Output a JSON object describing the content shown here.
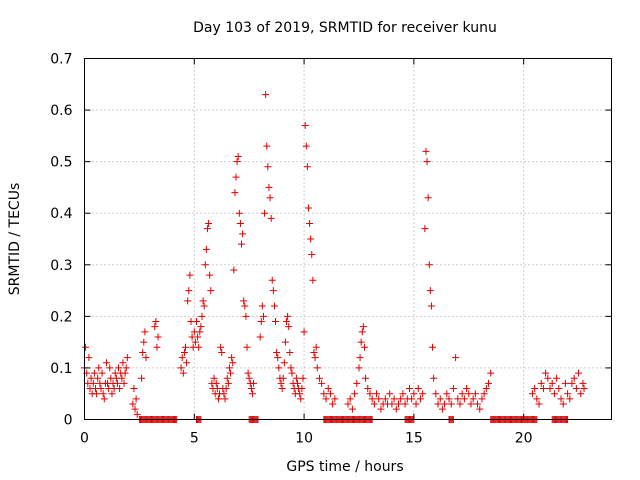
{
  "chart_data": {
    "type": "scatter",
    "title": "Day 103 of 2019, SRMTID for receiver kunu",
    "xlabel": "GPS time / hours",
    "ylabel": "SRMTID / TECUs",
    "xlim": [
      0,
      24
    ],
    "ylim": [
      0,
      0.7
    ],
    "xticks": [
      0,
      5,
      10,
      15,
      20
    ],
    "yticks": [
      0,
      0.1,
      0.2,
      0.3,
      0.4,
      0.5,
      0.6,
      0.7
    ],
    "xtick_labels": [
      "0",
      "5",
      "10",
      "15",
      "20"
    ],
    "ytick_labels": [
      "0",
      "0.1",
      "0.2",
      "0.3",
      "0.4",
      "0.5",
      "0.6",
      "0.7"
    ],
    "grid": true,
    "marker": "+",
    "color": "#e00000",
    "series": [
      {
        "name": "SRMTID",
        "points": [
          [
            0.0,
            0.1
          ],
          [
            0.05,
            0.14
          ],
          [
            0.1,
            0.09
          ],
          [
            0.15,
            0.07
          ],
          [
            0.2,
            0.12
          ],
          [
            0.25,
            0.06
          ],
          [
            0.3,
            0.08
          ],
          [
            0.35,
            0.05
          ],
          [
            0.4,
            0.07
          ],
          [
            0.45,
            0.09
          ],
          [
            0.5,
            0.06
          ],
          [
            0.55,
            0.05
          ],
          [
            0.6,
            0.08
          ],
          [
            0.65,
            0.1
          ],
          [
            0.7,
            0.07
          ],
          [
            0.75,
            0.06
          ],
          [
            0.8,
            0.09
          ],
          [
            0.85,
            0.05
          ],
          [
            0.9,
            0.04
          ],
          [
            0.95,
            0.07
          ],
          [
            1.0,
            0.11
          ],
          [
            1.05,
            0.07
          ],
          [
            1.1,
            0.06
          ],
          [
            1.15,
            0.1
          ],
          [
            1.2,
            0.08
          ],
          [
            1.25,
            0.05
          ],
          [
            1.3,
            0.07
          ],
          [
            1.35,
            0.06
          ],
          [
            1.4,
            0.09
          ],
          [
            1.45,
            0.08
          ],
          [
            1.5,
            0.07
          ],
          [
            1.55,
            0.1
          ],
          [
            1.6,
            0.06
          ],
          [
            1.65,
            0.09
          ],
          [
            1.7,
            0.08
          ],
          [
            1.75,
            0.11
          ],
          [
            1.8,
            0.07
          ],
          [
            1.85,
            0.09
          ],
          [
            1.9,
            0.1
          ],
          [
            1.95,
            0.12
          ],
          [
            2.2,
            0.03
          ],
          [
            2.25,
            0.06
          ],
          [
            2.3,
            0.02
          ],
          [
            2.35,
            0.04
          ],
          [
            2.4,
            0.01
          ],
          [
            2.6,
            0.08
          ],
          [
            2.65,
            0.13
          ],
          [
            2.7,
            0.15
          ],
          [
            2.75,
            0.17
          ],
          [
            2.8,
            0.12
          ],
          [
            3.2,
            0.18
          ],
          [
            3.25,
            0.19
          ],
          [
            3.3,
            0.14
          ],
          [
            3.35,
            0.16
          ],
          [
            4.4,
            0.1
          ],
          [
            4.45,
            0.12
          ],
          [
            4.5,
            0.09
          ],
          [
            4.55,
            0.13
          ],
          [
            4.6,
            0.14
          ],
          [
            4.65,
            0.11
          ],
          [
            4.7,
            0.23
          ],
          [
            4.75,
            0.25
          ],
          [
            4.8,
            0.28
          ],
          [
            4.85,
            0.19
          ],
          [
            4.9,
            0.16
          ],
          [
            4.95,
            0.14
          ],
          [
            5.0,
            0.17
          ],
          [
            5.05,
            0.15
          ],
          [
            5.1,
            0.19
          ],
          [
            5.15,
            0.16
          ],
          [
            5.2,
            0.14
          ],
          [
            5.25,
            0.17
          ],
          [
            5.3,
            0.18
          ],
          [
            5.35,
            0.2
          ],
          [
            5.4,
            0.23
          ],
          [
            5.45,
            0.22
          ],
          [
            5.5,
            0.3
          ],
          [
            5.55,
            0.33
          ],
          [
            5.6,
            0.37
          ],
          [
            5.65,
            0.38
          ],
          [
            5.7,
            0.28
          ],
          [
            5.75,
            0.25
          ],
          [
            5.8,
            0.07
          ],
          [
            5.85,
            0.06
          ],
          [
            5.9,
            0.08
          ],
          [
            5.95,
            0.05
          ],
          [
            6.0,
            0.07
          ],
          [
            6.05,
            0.06
          ],
          [
            6.1,
            0.04
          ],
          [
            6.15,
            0.05
          ],
          [
            6.2,
            0.14
          ],
          [
            6.25,
            0.13
          ],
          [
            6.3,
            0.06
          ],
          [
            6.35,
            0.05
          ],
          [
            6.4,
            0.04
          ],
          [
            6.45,
            0.06
          ],
          [
            6.5,
            0.08
          ],
          [
            6.55,
            0.07
          ],
          [
            6.6,
            0.1
          ],
          [
            6.65,
            0.09
          ],
          [
            6.7,
            0.12
          ],
          [
            6.75,
            0.11
          ],
          [
            6.8,
            0.29
          ],
          [
            6.85,
            0.44
          ],
          [
            6.9,
            0.47
          ],
          [
            6.95,
            0.5
          ],
          [
            7.0,
            0.51
          ],
          [
            7.05,
            0.4
          ],
          [
            7.1,
            0.38
          ],
          [
            7.15,
            0.34
          ],
          [
            7.2,
            0.36
          ],
          [
            7.25,
            0.23
          ],
          [
            7.3,
            0.22
          ],
          [
            7.35,
            0.2
          ],
          [
            7.4,
            0.14
          ],
          [
            7.45,
            0.09
          ],
          [
            7.5,
            0.08
          ],
          [
            7.55,
            0.07
          ],
          [
            7.6,
            0.06
          ],
          [
            7.65,
            0.05
          ],
          [
            7.7,
            0.07
          ],
          [
            8.0,
            0.16
          ],
          [
            8.05,
            0.19
          ],
          [
            8.1,
            0.22
          ],
          [
            8.15,
            0.2
          ],
          [
            8.2,
            0.4
          ],
          [
            8.25,
            0.63
          ],
          [
            8.3,
            0.53
          ],
          [
            8.35,
            0.49
          ],
          [
            8.4,
            0.45
          ],
          [
            8.45,
            0.43
          ],
          [
            8.5,
            0.39
          ],
          [
            8.55,
            0.27
          ],
          [
            8.6,
            0.25
          ],
          [
            8.65,
            0.22
          ],
          [
            8.7,
            0.19
          ],
          [
            8.75,
            0.13
          ],
          [
            8.8,
            0.12
          ],
          [
            8.85,
            0.1
          ],
          [
            8.9,
            0.08
          ],
          [
            8.95,
            0.07
          ],
          [
            9.0,
            0.06
          ],
          [
            9.05,
            0.08
          ],
          [
            9.1,
            0.11
          ],
          [
            9.15,
            0.15
          ],
          [
            9.2,
            0.19
          ],
          [
            9.25,
            0.2
          ],
          [
            9.3,
            0.18
          ],
          [
            9.35,
            0.13
          ],
          [
            9.4,
            0.1
          ],
          [
            9.45,
            0.09
          ],
          [
            9.5,
            0.07
          ],
          [
            9.55,
            0.06
          ],
          [
            9.6,
            0.05
          ],
          [
            9.65,
            0.08
          ],
          [
            9.7,
            0.07
          ],
          [
            9.75,
            0.06
          ],
          [
            9.8,
            0.05
          ],
          [
            9.85,
            0.04
          ],
          [
            9.9,
            0.06
          ],
          [
            9.95,
            0.08
          ],
          [
            10.0,
            0.17
          ],
          [
            10.05,
            0.57
          ],
          [
            10.1,
            0.53
          ],
          [
            10.15,
            0.49
          ],
          [
            10.2,
            0.41
          ],
          [
            10.25,
            0.38
          ],
          [
            10.3,
            0.35
          ],
          [
            10.35,
            0.32
          ],
          [
            10.4,
            0.27
          ],
          [
            10.45,
            0.13
          ],
          [
            10.5,
            0.12
          ],
          [
            10.55,
            0.14
          ],
          [
            10.6,
            0.1
          ],
          [
            10.7,
            0.08
          ],
          [
            10.8,
            0.07
          ],
          [
            10.9,
            0.05
          ],
          [
            11.0,
            0.04
          ],
          [
            11.1,
            0.06
          ],
          [
            11.2,
            0.05
          ],
          [
            11.3,
            0.03
          ],
          [
            11.4,
            0.04
          ],
          [
            12.0,
            0.03
          ],
          [
            12.1,
            0.04
          ],
          [
            12.2,
            0.02
          ],
          [
            12.3,
            0.05
          ],
          [
            12.4,
            0.07
          ],
          [
            12.5,
            0.1
          ],
          [
            12.55,
            0.12
          ],
          [
            12.6,
            0.15
          ],
          [
            12.65,
            0.17
          ],
          [
            12.7,
            0.18
          ],
          [
            12.75,
            0.14
          ],
          [
            12.8,
            0.08
          ],
          [
            12.9,
            0.06
          ],
          [
            13.0,
            0.05
          ],
          [
            13.1,
            0.04
          ],
          [
            13.2,
            0.03
          ],
          [
            13.3,
            0.05
          ],
          [
            13.4,
            0.04
          ],
          [
            13.5,
            0.02
          ],
          [
            13.6,
            0.03
          ],
          [
            13.7,
            0.04
          ],
          [
            13.8,
            0.03
          ],
          [
            13.9,
            0.05
          ],
          [
            14.0,
            0.03
          ],
          [
            14.1,
            0.04
          ],
          [
            14.2,
            0.02
          ],
          [
            14.3,
            0.03
          ],
          [
            14.4,
            0.04
          ],
          [
            14.5,
            0.05
          ],
          [
            14.6,
            0.03
          ],
          [
            14.7,
            0.04
          ],
          [
            14.8,
            0.06
          ],
          [
            14.9,
            0.04
          ],
          [
            15.0,
            0.05
          ],
          [
            15.1,
            0.03
          ],
          [
            15.2,
            0.06
          ],
          [
            15.3,
            0.04
          ],
          [
            15.4,
            0.05
          ],
          [
            15.5,
            0.37
          ],
          [
            15.55,
            0.52
          ],
          [
            15.6,
            0.5
          ],
          [
            15.65,
            0.43
          ],
          [
            15.7,
            0.3
          ],
          [
            15.75,
            0.25
          ],
          [
            15.8,
            0.22
          ],
          [
            15.85,
            0.14
          ],
          [
            15.9,
            0.08
          ],
          [
            16.0,
            0.05
          ],
          [
            16.1,
            0.03
          ],
          [
            16.2,
            0.04
          ],
          [
            16.3,
            0.02
          ],
          [
            16.4,
            0.03
          ],
          [
            16.5,
            0.05
          ],
          [
            16.6,
            0.04
          ],
          [
            16.7,
            0.03
          ],
          [
            16.8,
            0.06
          ],
          [
            16.9,
            0.12
          ],
          [
            17.0,
            0.04
          ],
          [
            17.1,
            0.03
          ],
          [
            17.2,
            0.05
          ],
          [
            17.3,
            0.04
          ],
          [
            17.4,
            0.06
          ],
          [
            17.5,
            0.05
          ],
          [
            17.6,
            0.03
          ],
          [
            17.7,
            0.04
          ],
          [
            17.8,
            0.05
          ],
          [
            17.9,
            0.03
          ],
          [
            18.0,
            0.02
          ],
          [
            18.1,
            0.04
          ],
          [
            18.2,
            0.05
          ],
          [
            18.3,
            0.06
          ],
          [
            18.4,
            0.07
          ],
          [
            18.5,
            0.09
          ],
          [
            20.4,
            0.05
          ],
          [
            20.5,
            0.06
          ],
          [
            20.6,
            0.04
          ],
          [
            20.7,
            0.03
          ],
          [
            20.8,
            0.07
          ],
          [
            20.9,
            0.06
          ],
          [
            21.0,
            0.09
          ],
          [
            21.1,
            0.08
          ],
          [
            21.2,
            0.06
          ],
          [
            21.3,
            0.07
          ],
          [
            21.4,
            0.05
          ],
          [
            21.5,
            0.08
          ],
          [
            21.6,
            0.06
          ],
          [
            21.7,
            0.04
          ],
          [
            21.8,
            0.03
          ],
          [
            21.9,
            0.07
          ],
          [
            22.0,
            0.05
          ],
          [
            22.1,
            0.04
          ],
          [
            22.2,
            0.07
          ],
          [
            22.3,
            0.08
          ],
          [
            22.4,
            0.06
          ],
          [
            22.5,
            0.09
          ],
          [
            22.6,
            0.05
          ],
          [
            22.7,
            0.07
          ],
          [
            22.75,
            0.06
          ]
        ],
        "zero_ranges": [
          [
            2.5,
            4.2
          ],
          [
            5.1,
            5.3
          ],
          [
            7.5,
            7.9
          ],
          [
            10.9,
            13.1
          ],
          [
            14.6,
            15.0
          ],
          [
            16.6,
            16.8
          ],
          [
            18.5,
            20.6
          ],
          [
            21.3,
            22.0
          ]
        ]
      }
    ]
  }
}
